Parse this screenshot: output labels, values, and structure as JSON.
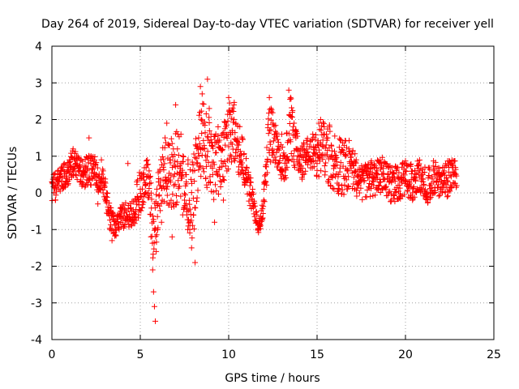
{
  "chart_data": {
    "type": "scatter",
    "title": "Day 264 of 2019, Sidereal Day-to-day VTEC variation (SDTVAR) for receiver yell",
    "xlabel": "GPS time / hours",
    "ylabel": "SDTVAR / TECUs",
    "xlim": [
      0,
      25
    ],
    "ylim": [
      -4,
      4
    ],
    "x_ticks": [
      0,
      5,
      10,
      15,
      20,
      25
    ],
    "y_ticks": [
      -4,
      -3,
      -2,
      -1,
      0,
      1,
      2,
      3,
      4
    ],
    "grid": true,
    "marker": "+",
    "series_color": "#ff0000",
    "x_range_observed": [
      0,
      22.9
    ],
    "y_range_observed": [
      -3.6,
      3.1
    ],
    "sample_points": [
      [
        0.0,
        0.3
      ],
      [
        0.1,
        0.5
      ],
      [
        0.2,
        -0.2
      ],
      [
        0.3,
        0.4
      ],
      [
        0.4,
        0.1
      ],
      [
        0.5,
        0.6
      ],
      [
        0.6,
        0.2
      ],
      [
        0.7,
        0.8
      ],
      [
        0.8,
        0.3
      ],
      [
        0.9,
        0.6
      ],
      [
        1.0,
        0.9
      ],
      [
        1.1,
        0.7
      ],
      [
        1.2,
        1.2
      ],
      [
        1.3,
        0.9
      ],
      [
        1.4,
        1.0
      ],
      [
        1.5,
        0.6
      ],
      [
        1.6,
        0.9
      ],
      [
        1.7,
        0.3
      ],
      [
        1.8,
        0.5
      ],
      [
        1.9,
        0.2
      ],
      [
        2.0,
        0.6
      ],
      [
        2.1,
        1.5
      ],
      [
        2.2,
        0.8
      ],
      [
        2.3,
        0.4
      ],
      [
        2.4,
        0.9
      ],
      [
        2.5,
        0.5
      ],
      [
        2.6,
        -0.3
      ],
      [
        2.7,
        0.2
      ],
      [
        2.8,
        0.9
      ],
      [
        2.9,
        0.6
      ],
      [
        3.0,
        0.3
      ],
      [
        3.1,
        0.0
      ],
      [
        3.2,
        -0.5
      ],
      [
        3.3,
        -1.0
      ],
      [
        3.4,
        -1.3
      ],
      [
        3.5,
        -1.1
      ],
      [
        3.6,
        -1.0
      ],
      [
        3.7,
        -0.6
      ],
      [
        3.8,
        -1.0
      ],
      [
        3.9,
        -0.4
      ],
      [
        4.3,
        0.8
      ],
      [
        4.5,
        -0.5
      ],
      [
        4.6,
        -0.8
      ],
      [
        4.7,
        -0.2
      ],
      [
        4.8,
        0.3
      ],
      [
        4.9,
        -0.6
      ],
      [
        5.0,
        0.1
      ],
      [
        5.1,
        -0.4
      ],
      [
        5.2,
        0.5
      ],
      [
        5.3,
        0.2
      ],
      [
        5.4,
        0.9
      ],
      [
        5.5,
        0.6
      ],
      [
        5.6,
        -1.2
      ],
      [
        5.7,
        -2.1
      ],
      [
        5.75,
        -2.7
      ],
      [
        5.8,
        -3.1
      ],
      [
        5.85,
        -3.5
      ],
      [
        5.9,
        -1.6
      ],
      [
        6.0,
        -0.3
      ],
      [
        6.1,
        0.2
      ],
      [
        6.2,
        -0.8
      ],
      [
        6.3,
        0.7
      ],
      [
        6.4,
        1.5
      ],
      [
        6.5,
        1.9
      ],
      [
        6.6,
        0.4
      ],
      [
        6.7,
        0.9
      ],
      [
        6.8,
        -1.2
      ],
      [
        6.9,
        0.2
      ],
      [
        7.0,
        2.4
      ],
      [
        7.1,
        1.2
      ],
      [
        7.2,
        0.5
      ],
      [
        7.3,
        1.6
      ],
      [
        7.4,
        -0.6
      ],
      [
        7.5,
        -0.2
      ],
      [
        7.6,
        0.3
      ],
      [
        7.7,
        0.9
      ],
      [
        7.8,
        -1.0
      ],
      [
        7.9,
        -1.5
      ],
      [
        8.0,
        -0.6
      ],
      [
        8.1,
        -1.9
      ],
      [
        8.2,
        0.8
      ],
      [
        8.3,
        1.5
      ],
      [
        8.4,
        2.9
      ],
      [
        8.5,
        2.7
      ],
      [
        8.6,
        1.2
      ],
      [
        8.7,
        0.4
      ],
      [
        8.8,
        3.1
      ],
      [
        8.9,
        2.3
      ],
      [
        9.0,
        1.6
      ],
      [
        9.1,
        0.5
      ],
      [
        9.2,
        -0.8
      ],
      [
        9.3,
        1.1
      ],
      [
        9.4,
        1.8
      ],
      [
        9.5,
        0.7
      ],
      [
        9.6,
        0.3
      ],
      [
        9.7,
        -0.2
      ],
      [
        9.8,
        1.3
      ],
      [
        9.9,
        0.6
      ],
      [
        10.0,
        2.6
      ],
      [
        10.1,
        2.2
      ],
      [
        10.2,
        1.7
      ],
      [
        10.3,
        2.4
      ],
      [
        10.4,
        1.9
      ],
      [
        10.5,
        1.3
      ],
      [
        10.6,
        1.0
      ],
      [
        10.7,
        0.9
      ],
      [
        10.8,
        0.6
      ],
      [
        10.9,
        0.3
      ],
      [
        11.0,
        0.5
      ],
      [
        11.2,
        0.2
      ],
      [
        11.4,
        -0.4
      ],
      [
        11.6,
        -0.6
      ],
      [
        11.7,
        -1.0
      ],
      [
        11.8,
        -0.9
      ],
      [
        11.9,
        -0.7
      ],
      [
        12.0,
        0.1
      ],
      [
        12.1,
        0.5
      ],
      [
        12.2,
        0.9
      ],
      [
        12.3,
        2.6
      ],
      [
        12.4,
        2.3
      ],
      [
        12.5,
        1.9
      ],
      [
        12.6,
        1.5
      ],
      [
        12.7,
        1.1
      ],
      [
        12.8,
        0.8
      ],
      [
        13.0,
        1.6
      ],
      [
        13.2,
        1.0
      ],
      [
        13.3,
        0.7
      ],
      [
        13.4,
        2.8
      ],
      [
        13.5,
        2.6
      ],
      [
        13.6,
        2.2
      ],
      [
        13.7,
        1.9
      ],
      [
        13.8,
        1.5
      ],
      [
        13.9,
        1.2
      ],
      [
        14.0,
        0.9
      ],
      [
        14.2,
        0.5
      ],
      [
        14.4,
        1.2
      ],
      [
        14.6,
        1.4
      ],
      [
        14.8,
        1.1
      ],
      [
        15.0,
        0.8
      ],
      [
        15.1,
        1.9
      ],
      [
        15.2,
        2.0
      ],
      [
        15.4,
        1.8
      ],
      [
        15.6,
        1.5
      ],
      [
        15.8,
        1.3
      ],
      [
        16.0,
        0.9
      ],
      [
        16.2,
        0.5
      ],
      [
        16.4,
        0.2
      ],
      [
        16.6,
        1.0
      ],
      [
        16.8,
        1.2
      ],
      [
        17.0,
        0.8
      ],
      [
        17.2,
        0.3
      ],
      [
        17.4,
        0.0
      ],
      [
        17.6,
        0.4
      ],
      [
        17.8,
        0.7
      ],
      [
        18.0,
        0.5
      ],
      [
        18.2,
        0.2
      ],
      [
        18.4,
        0.6
      ],
      [
        18.6,
        0.3
      ],
      [
        18.8,
        0.8
      ],
      [
        19.0,
        0.5
      ],
      [
        19.2,
        -0.2
      ],
      [
        19.4,
        0.1
      ],
      [
        19.6,
        0.4
      ],
      [
        19.8,
        0.7
      ],
      [
        20.0,
        0.6
      ],
      [
        20.2,
        0.3
      ],
      [
        20.4,
        0.0
      ],
      [
        20.6,
        0.5
      ],
      [
        20.8,
        0.6
      ],
      [
        21.0,
        0.3
      ],
      [
        21.2,
        -0.1
      ],
      [
        21.4,
        0.2
      ],
      [
        21.6,
        0.6
      ],
      [
        21.8,
        0.4
      ],
      [
        22.0,
        0.1
      ],
      [
        22.2,
        0.7
      ],
      [
        22.4,
        0.3
      ],
      [
        22.6,
        0.8
      ],
      [
        22.8,
        0.5
      ],
      [
        22.9,
        0.2
      ]
    ],
    "trace": [
      [
        0.0,
        0.1,
        0.35
      ],
      [
        0.2,
        0.2,
        0.4
      ],
      [
        0.5,
        0.35,
        0.35
      ],
      [
        0.9,
        0.55,
        0.35
      ],
      [
        1.2,
        0.8,
        0.4
      ],
      [
        1.5,
        0.7,
        0.4
      ],
      [
        1.8,
        0.45,
        0.35
      ],
      [
        2.1,
        0.7,
        0.5
      ],
      [
        2.4,
        0.6,
        0.4
      ],
      [
        2.7,
        0.4,
        0.45
      ],
      [
        3.0,
        0.1,
        0.4
      ],
      [
        3.3,
        -0.7,
        0.4
      ],
      [
        3.6,
        -1.0,
        0.25
      ],
      [
        3.8,
        -0.7,
        0.35
      ],
      [
        4.6,
        -0.5,
        0.4
      ],
      [
        4.9,
        -0.1,
        0.6
      ],
      [
        5.2,
        0.2,
        0.6
      ],
      [
        5.5,
        0.3,
        0.8
      ],
      [
        5.7,
        -1.5,
        1.0
      ],
      [
        6.0,
        -0.2,
        0.8
      ],
      [
        6.3,
        0.5,
        0.8
      ],
      [
        6.6,
        0.6,
        1.0
      ],
      [
        6.9,
        0.4,
        1.1
      ],
      [
        7.2,
        0.9,
        1.0
      ],
      [
        7.5,
        0.2,
        0.9
      ],
      [
        7.8,
        -0.3,
        1.1
      ],
      [
        8.1,
        0.2,
        1.2
      ],
      [
        8.4,
        1.3,
        1.2
      ],
      [
        8.7,
        1.4,
        1.2
      ],
      [
        9.0,
        0.8,
        1.0
      ],
      [
        9.3,
        0.7,
        0.9
      ],
      [
        9.6,
        0.8,
        0.9
      ],
      [
        10.0,
        1.6,
        0.9
      ],
      [
        10.3,
        1.7,
        0.8
      ],
      [
        10.7,
        1.0,
        0.7
      ],
      [
        11.0,
        0.5,
        0.5
      ],
      [
        11.4,
        -0.3,
        0.4
      ],
      [
        11.7,
        -0.9,
        0.2
      ],
      [
        11.9,
        -0.6,
        0.3
      ],
      [
        12.1,
        0.4,
        0.5
      ],
      [
        12.3,
        1.7,
        0.9
      ],
      [
        12.6,
        1.4,
        0.6
      ],
      [
        12.9,
        0.9,
        0.5
      ],
      [
        13.2,
        0.8,
        0.5
      ],
      [
        13.5,
        1.8,
        0.9
      ],
      [
        13.8,
        1.2,
        0.6
      ],
      [
        14.1,
        0.8,
        0.5
      ],
      [
        14.4,
        1.0,
        0.5
      ],
      [
        14.7,
        1.1,
        0.5
      ],
      [
        15.0,
        1.0,
        0.6
      ],
      [
        15.3,
        1.3,
        0.8
      ],
      [
        15.6,
        1.1,
        0.9
      ],
      [
        16.0,
        0.8,
        0.8
      ],
      [
        16.4,
        0.7,
        0.8
      ],
      [
        16.8,
        0.8,
        0.7
      ],
      [
        17.2,
        0.5,
        0.6
      ],
      [
        17.6,
        0.3,
        0.5
      ],
      [
        18.0,
        0.4,
        0.5
      ],
      [
        18.4,
        0.4,
        0.5
      ],
      [
        18.8,
        0.5,
        0.5
      ],
      [
        19.2,
        0.2,
        0.5
      ],
      [
        19.6,
        0.3,
        0.5
      ],
      [
        20.0,
        0.4,
        0.5
      ],
      [
        20.4,
        0.3,
        0.5
      ],
      [
        20.8,
        0.4,
        0.5
      ],
      [
        21.2,
        0.2,
        0.5
      ],
      [
        21.6,
        0.4,
        0.5
      ],
      [
        22.0,
        0.3,
        0.5
      ],
      [
        22.4,
        0.4,
        0.5
      ],
      [
        22.9,
        0.5,
        0.4
      ]
    ]
  }
}
